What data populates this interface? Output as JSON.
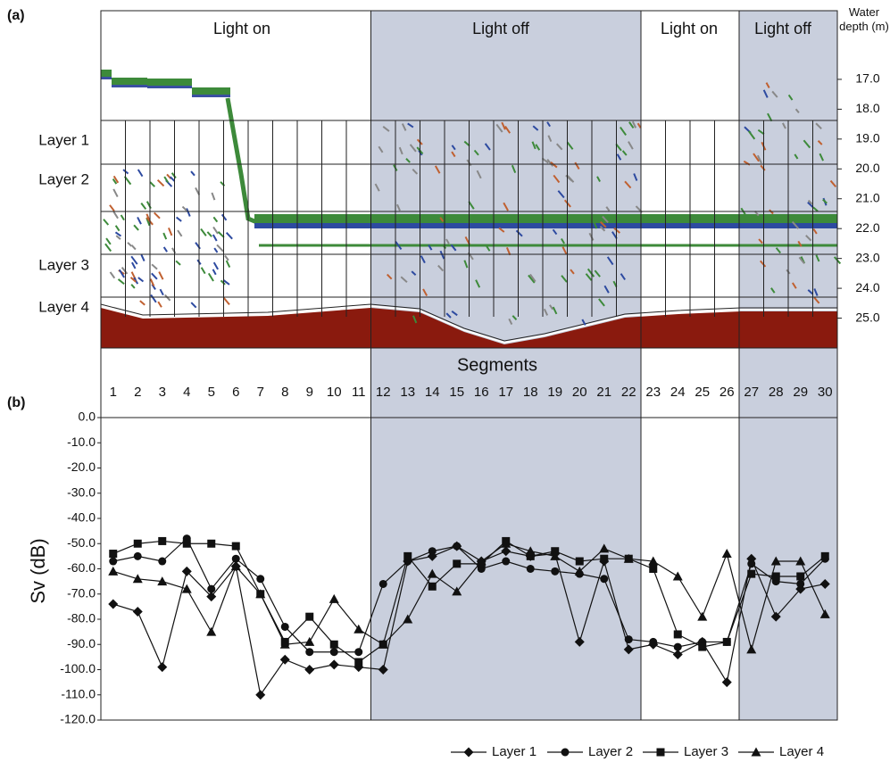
{
  "echogram": {
    "panel_label": "(a)",
    "periods": [
      "Light on",
      "Light off",
      "Light on",
      "Light off"
    ],
    "depth_title": "Water depth (m)",
    "depth_lim": [
      14.7,
      26.0
    ],
    "depth_ticks": [
      {
        "value": 17,
        "label": "17.0"
      },
      {
        "value": 18,
        "label": "18.0"
      },
      {
        "value": 19,
        "label": "19.0"
      },
      {
        "value": 20,
        "label": "20.0"
      },
      {
        "value": 21,
        "label": "21.0"
      },
      {
        "value": 22,
        "label": "22.0"
      },
      {
        "value": 23,
        "label": "23.0"
      },
      {
        "value": 24,
        "label": "24.0"
      },
      {
        "value": 25,
        "label": "25.0"
      }
    ],
    "layers": [
      "Layer 1",
      "Layer 2",
      "Layer 3",
      "Layer 4"
    ],
    "segments_title": "Segments"
  },
  "chart_data": {
    "type": "line",
    "panel_label": "(b)",
    "y_label": "Sv (dB)",
    "categories": [
      "1",
      "2",
      "3",
      "4",
      "5",
      "6",
      "7",
      "8",
      "9",
      "10",
      "11",
      "12",
      "13",
      "14",
      "15",
      "16",
      "17",
      "18",
      "19",
      "20",
      "21",
      "22",
      "23",
      "24",
      "25",
      "26",
      "27",
      "28",
      "29",
      "30"
    ],
    "ylim": [
      -120,
      0
    ],
    "yticks": [
      {
        "value": 0,
        "label": "0.0"
      },
      {
        "value": -10,
        "label": "-10.0"
      },
      {
        "value": -20,
        "label": "-20.0"
      },
      {
        "value": -30,
        "label": "-30.0"
      },
      {
        "value": -40,
        "label": "-40.0"
      },
      {
        "value": -50,
        "label": "-50.0"
      },
      {
        "value": -60,
        "label": "-60.0"
      },
      {
        "value": -70,
        "label": "-70.0"
      },
      {
        "value": -80,
        "label": "-80.0"
      },
      {
        "value": -90,
        "label": "-90.0"
      },
      {
        "value": -100,
        "label": "-100.0"
      },
      {
        "value": -110,
        "label": "-110.0"
      },
      {
        "value": -120,
        "label": "-120.0"
      }
    ],
    "grid": false,
    "legend": "bottom",
    "series": [
      {
        "name": "Layer 1",
        "color": "#111111",
        "marker": "diamond",
        "values": [
          -74,
          -77,
          -99,
          -61,
          -71,
          -59,
          -110,
          -96,
          -100,
          -98,
          -99,
          -100,
          -57,
          -55,
          -51,
          -57,
          -53,
          -55,
          -54,
          -89,
          -57,
          -92,
          -90,
          -94,
          -89,
          -105,
          -56,
          -79,
          -68,
          -66
        ]
      },
      {
        "name": "Layer 2",
        "color": "#111111",
        "marker": "circle",
        "values": [
          -57,
          -55,
          -57,
          -48,
          -68,
          -56,
          -64,
          -83,
          -93,
          -93,
          -93,
          -66,
          -57,
          -53,
          -51,
          -60,
          -57,
          -60,
          -61,
          -62,
          -64,
          -88,
          -89,
          -91,
          -89,
          -89,
          -58,
          -65,
          -66,
          -56
        ]
      },
      {
        "name": "Layer 3",
        "color": "#111111",
        "marker": "square",
        "values": [
          -54,
          -50,
          -49,
          -50,
          -50,
          -51,
          -70,
          -89,
          -79,
          -90,
          -97,
          -90,
          -55,
          -67,
          -58,
          -58,
          -49,
          -55,
          -53,
          -57,
          -56,
          -56,
          -60,
          -86,
          -91,
          -89,
          -62,
          -63,
          -63,
          -55
        ]
      },
      {
        "name": "Layer 4",
        "color": "#111111",
        "marker": "triangle",
        "values": [
          -61,
          -64,
          -65,
          -68,
          -85,
          -59,
          -70,
          -90,
          -89,
          -72,
          -84,
          -90,
          -80,
          -62,
          -69,
          -57,
          -50,
          -53,
          -55,
          -61,
          -52,
          -56,
          -57,
          -63,
          -79,
          -54,
          -92,
          -57,
          -57,
          -78
        ]
      }
    ]
  }
}
